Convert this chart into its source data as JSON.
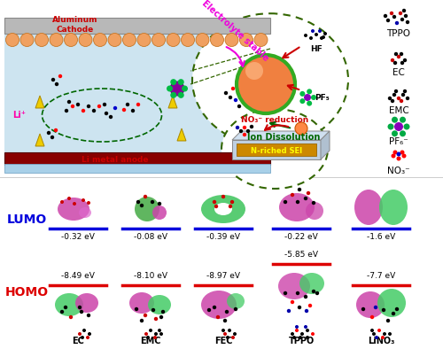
{
  "background_color": "#ffffff",
  "top_section": {
    "battery_labels": {
      "aluminum_cathode": "Aluminum\nCathode",
      "li_metal_anode": "Li metal anode",
      "li_plus": "Li⁺",
      "aluminum_cathode_color": "#cc0000",
      "li_metal_anode_color": "#cc0000"
    },
    "legend_items": [
      "TPPO",
      "EC",
      "EMC",
      "PF₆⁻",
      "NO₃⁻"
    ]
  },
  "bottom_section": {
    "lumo_label": "LUMO",
    "homo_label": "HOMO",
    "lumo_color": "#0000dd",
    "homo_color": "#dd0000",
    "molecules": [
      "EC",
      "EMC",
      "FEC",
      "TPPO",
      "LiNO₃"
    ],
    "lumo_values": [
      "-0.32 eV",
      "-0.08 eV",
      "-0.39 eV",
      "-0.22 eV",
      "-1.6 eV"
    ],
    "homo_values": [
      "-8.49 eV",
      "-8.10 eV",
      "-8.97 eV",
      "-5.85 eV",
      "-7.7 eV"
    ],
    "lumo_line_color": "#0000dd",
    "homo_line_color": "#dd0000"
  }
}
